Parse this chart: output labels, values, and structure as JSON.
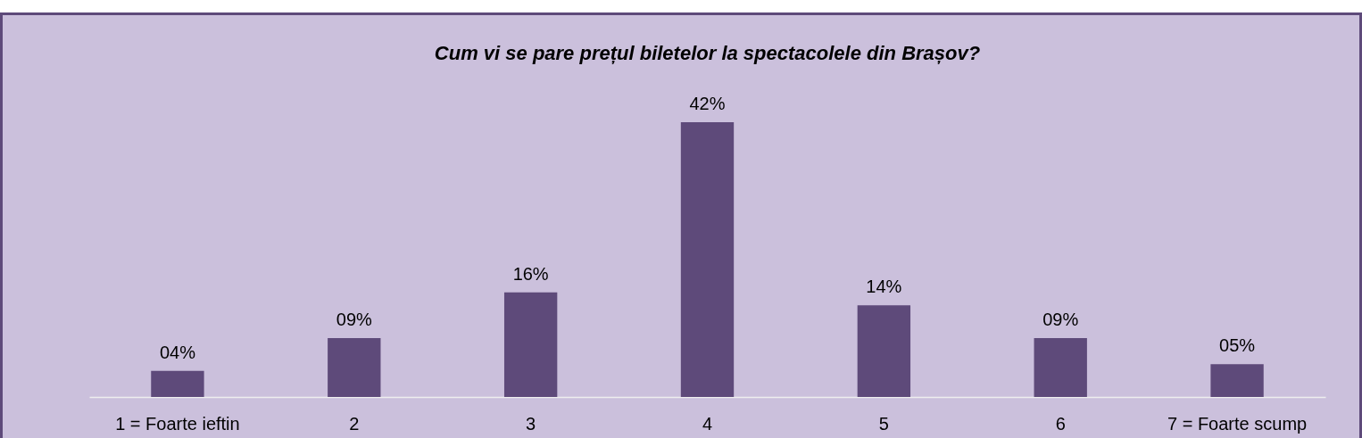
{
  "chart_data": {
    "type": "bar",
    "title": "Cum vi se pare prețul biletelor la spectacolele din Brașov?",
    "categories": [
      "1 = Foarte ieftin",
      "2",
      "3",
      "4",
      "5",
      "6",
      "7 = Foarte scump"
    ],
    "values": [
      4,
      9,
      16,
      42,
      14,
      9,
      5
    ],
    "value_labels": [
      "04%",
      "09%",
      "16%",
      "42%",
      "14%",
      "09%",
      "05%"
    ],
    "color": "#5e4a7a",
    "grid": false
  }
}
